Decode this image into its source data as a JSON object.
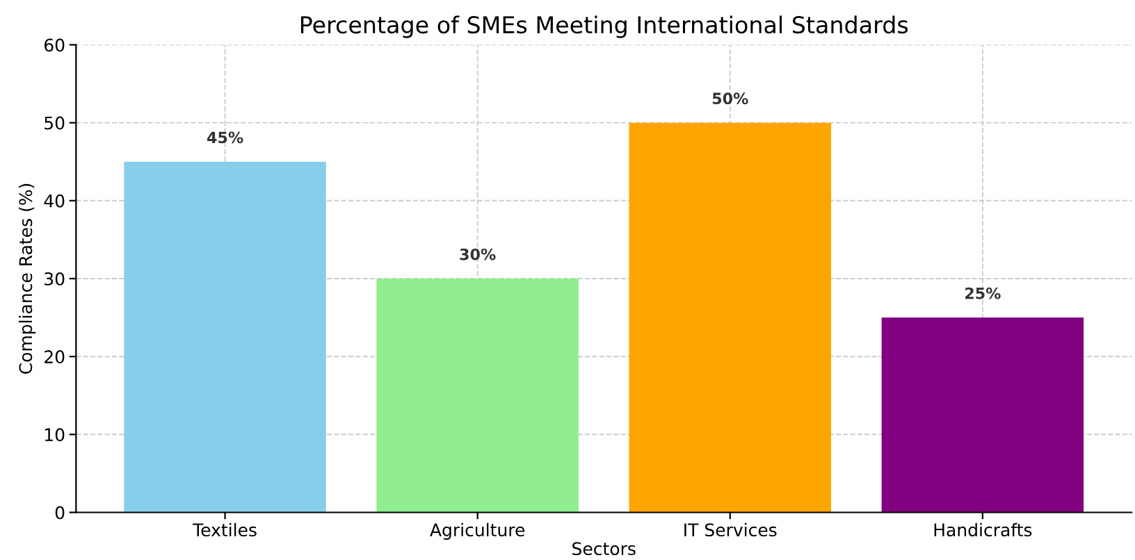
{
  "chart_data": {
    "type": "bar",
    "title": "Percentage of SMEs Meeting International Standards",
    "xlabel": "Sectors",
    "ylabel": "Compliance Rates (%)",
    "categories": [
      "Textiles",
      "Agriculture",
      "IT Services",
      "Handicrafts"
    ],
    "values": [
      45,
      30,
      50,
      25
    ],
    "colors": [
      "#87ceeb",
      "#90ee90",
      "#ffa500",
      "#800080"
    ],
    "value_labels": [
      "45%",
      "30%",
      "50%",
      "25%"
    ],
    "ylim": [
      0,
      60
    ],
    "yticks": [
      0,
      10,
      20,
      30,
      40,
      50,
      60
    ],
    "grid": true
  }
}
